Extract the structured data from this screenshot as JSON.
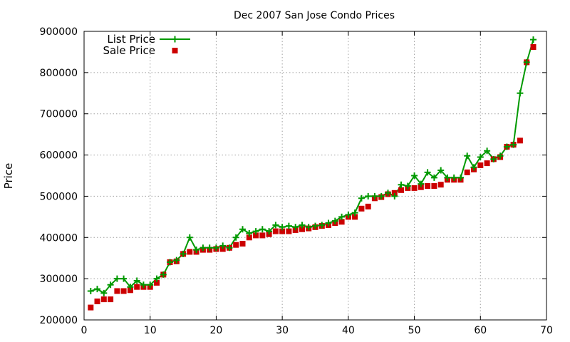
{
  "chart_data": {
    "type": "line",
    "title": "Dec 2007 San Jose Condo Prices",
    "xlabel": "",
    "ylabel": "Price",
    "xlim": [
      0,
      70
    ],
    "ylim": [
      200000,
      900000
    ],
    "xticks": [
      0,
      10,
      20,
      30,
      40,
      50,
      60,
      70
    ],
    "yticks": [
      200000,
      300000,
      400000,
      500000,
      600000,
      700000,
      800000,
      900000
    ],
    "grid": true,
    "legend_position": "top-left",
    "series": [
      {
        "name": "List Price",
        "style": "lines+plus",
        "color": "#009900",
        "x": [
          1,
          2,
          3,
          4,
          5,
          6,
          7,
          8,
          9,
          10,
          11,
          12,
          13,
          14,
          15,
          16,
          17,
          18,
          19,
          20,
          21,
          22,
          23,
          24,
          25,
          26,
          27,
          28,
          29,
          30,
          31,
          32,
          33,
          34,
          35,
          36,
          37,
          38,
          39,
          40,
          41,
          42,
          43,
          44,
          45,
          46,
          47,
          48,
          49,
          50,
          51,
          52,
          53,
          54,
          55,
          56,
          57,
          58,
          59,
          60,
          61,
          62,
          63,
          64,
          65,
          66,
          67,
          68
        ],
        "values": [
          270000,
          275000,
          265000,
          285000,
          300000,
          300000,
          280000,
          295000,
          285000,
          285000,
          300000,
          310000,
          340000,
          345000,
          360000,
          400000,
          370000,
          375000,
          375000,
          375000,
          380000,
          375000,
          400000,
          420000,
          410000,
          415000,
          420000,
          415000,
          430000,
          425000,
          428000,
          425000,
          430000,
          425000,
          428000,
          430000,
          435000,
          440000,
          450000,
          455000,
          460000,
          495000,
          500000,
          500000,
          500000,
          508000,
          500000,
          528000,
          525000,
          550000,
          530000,
          558000,
          545000,
          563000,
          545000,
          545000,
          545000,
          598000,
          570000,
          595000,
          610000,
          590000,
          598000,
          620000,
          625000,
          750000,
          825000,
          880000
        ]
      },
      {
        "name": "Sale Price",
        "style": "points",
        "color": "#cc0000",
        "x": [
          1,
          2,
          3,
          4,
          5,
          6,
          7,
          8,
          9,
          10,
          11,
          12,
          13,
          14,
          15,
          16,
          17,
          18,
          19,
          20,
          21,
          22,
          23,
          24,
          25,
          26,
          27,
          28,
          29,
          30,
          31,
          32,
          33,
          34,
          35,
          36,
          37,
          38,
          39,
          40,
          41,
          42,
          43,
          44,
          45,
          46,
          47,
          48,
          49,
          50,
          51,
          52,
          53,
          54,
          55,
          56,
          57,
          58,
          59,
          60,
          61,
          62,
          63,
          64,
          65,
          66,
          67,
          68
        ],
        "values": [
          230000,
          245000,
          250000,
          250000,
          270000,
          270000,
          272000,
          280000,
          280000,
          280000,
          290000,
          310000,
          340000,
          342000,
          360000,
          365000,
          365000,
          370000,
          370000,
          372000,
          372000,
          375000,
          382000,
          385000,
          400000,
          405000,
          405000,
          408000,
          415000,
          415000,
          415000,
          418000,
          420000,
          422000,
          425000,
          428000,
          430000,
          435000,
          438000,
          450000,
          450000,
          470000,
          475000,
          495000,
          498000,
          505000,
          508000,
          515000,
          520000,
          520000,
          522000,
          525000,
          525000,
          528000,
          540000,
          540000,
          540000,
          558000,
          565000,
          575000,
          580000,
          590000,
          595000,
          620000,
          625000,
          635000,
          825000,
          862000
        ]
      }
    ]
  }
}
